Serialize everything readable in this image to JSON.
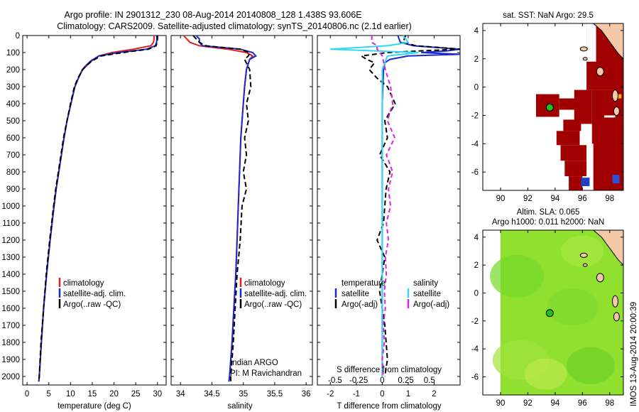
{
  "header": {
    "title_line1": "Argo profile: IN 2901312_230 08-Aug-2014 20140808_128 1.438S 93.606E",
    "title_line2": "Climatology: CARS2009. Satellite-adjusted climatology: synTS_20140806.nc (2.1d earlier)"
  },
  "colors": {
    "climatology": "#e02020",
    "satellite": "#1a28d0",
    "argo": "#000000",
    "salinity_satellite": "#30d8f0",
    "salinity_argo": "#e020e0",
    "sst_red": "#a00000",
    "land": "#f5c8a8",
    "sla_green": "#90e030",
    "marker": "#20c020"
  },
  "chart_data": [
    {
      "id": "temperature",
      "type": "line",
      "xlabel": "temperature (deg C)",
      "ylabel": "",
      "xlim": [
        -1,
        32
      ],
      "ylim": [
        2050,
        0
      ],
      "xticks": [
        0,
        5,
        10,
        15,
        20,
        25,
        30
      ],
      "yticks": [
        0,
        100,
        200,
        300,
        400,
        500,
        600,
        700,
        800,
        900,
        1000,
        1100,
        1200,
        1300,
        1400,
        1500,
        1600,
        1700,
        1800,
        1900,
        2000
      ],
      "legend": [
        "climatology",
        "satellite-adj. clim.",
        "Argo(..raw -QC)"
      ],
      "series": [
        {
          "name": "climatology",
          "depth": [
            0,
            20,
            40,
            60,
            80,
            100,
            120,
            150,
            180,
            200,
            250,
            300,
            400,
            500,
            600,
            700,
            800,
            900,
            1000,
            1200,
            1400,
            1600,
            1800,
            2000,
            2030
          ],
          "values": [
            29.2,
            29.2,
            29.1,
            28.5,
            24.5,
            19.5,
            16.5,
            14.8,
            13.6,
            12.8,
            11.8,
            11.0,
            10.1,
            9.2,
            8.5,
            7.9,
            7.3,
            6.7,
            6.2,
            5.3,
            4.5,
            3.8,
            3.3,
            2.8,
            2.7
          ]
        },
        {
          "name": "satellite-adj. clim.",
          "depth": [
            0,
            20,
            40,
            60,
            80,
            100,
            120,
            150,
            180,
            200,
            250,
            300,
            400,
            500,
            600,
            700,
            800,
            900,
            1000,
            1200,
            1400,
            1600,
            1800,
            2000,
            2030
          ],
          "values": [
            29.8,
            29.9,
            29.8,
            29.5,
            27.5,
            21.0,
            16.5,
            14.6,
            13.4,
            12.7,
            11.8,
            11.0,
            10.1,
            9.2,
            8.5,
            7.9,
            7.3,
            6.7,
            6.2,
            5.3,
            4.5,
            3.8,
            3.3,
            2.8,
            2.7
          ]
        },
        {
          "name": "Argo(..raw -QC)",
          "depth": [
            0,
            20,
            40,
            60,
            80,
            100,
            120,
            150,
            180,
            200,
            250,
            300,
            400,
            500,
            600,
            700,
            800,
            900,
            1000,
            1200,
            1400,
            1600,
            1800,
            2000,
            2030
          ],
          "values": [
            30.0,
            30.0,
            29.9,
            29.7,
            28.0,
            22.0,
            17.0,
            14.9,
            13.5,
            12.8,
            11.7,
            10.9,
            10.0,
            9.2,
            8.4,
            7.8,
            7.2,
            6.6,
            6.1,
            5.2,
            4.4,
            3.8,
            3.2,
            2.8,
            2.7
          ]
        }
      ]
    },
    {
      "id": "salinity",
      "type": "line",
      "xlabel": "salinity",
      "xlim": [
        33.85,
        36.1
      ],
      "ylim": [
        2050,
        0
      ],
      "xticks": [
        34,
        34.5,
        35,
        35.5,
        36
      ],
      "legend": [
        "climatology",
        "satellite-adj. clim.",
        "Argo(..raw -QC)"
      ],
      "annotation": [
        "Indian ARGO",
        "PI: M Ravichandran"
      ],
      "series": [
        {
          "name": "climatology",
          "depth": [
            0,
            20,
            40,
            60,
            80,
            100,
            120,
            140,
            200,
            300,
            400,
            500,
            600,
            700,
            800,
            900,
            1000,
            1200,
            1400,
            1600,
            1800,
            2000,
            2030
          ],
          "values": [
            34.05,
            34.1,
            34.15,
            34.3,
            34.75,
            35.05,
            35.15,
            35.1,
            35.05,
            35.02,
            35.0,
            34.98,
            34.96,
            34.95,
            34.94,
            34.93,
            34.92,
            34.9,
            34.88,
            34.85,
            34.82,
            34.78,
            34.77
          ]
        },
        {
          "name": "satellite-adj. clim.",
          "depth": [
            0,
            20,
            40,
            60,
            80,
            100,
            120,
            140,
            200,
            300,
            400,
            500,
            600,
            700,
            800,
            900,
            1000,
            1200,
            1400,
            1600,
            1800,
            2000,
            2030
          ],
          "values": [
            34.25,
            34.3,
            34.3,
            34.35,
            34.95,
            35.15,
            35.2,
            35.1,
            35.05,
            35.02,
            35.0,
            34.98,
            34.96,
            34.95,
            34.94,
            34.93,
            34.92,
            34.9,
            34.88,
            34.85,
            34.82,
            34.78,
            34.77
          ]
        },
        {
          "name": "Argo(..raw -QC)",
          "depth": [
            0,
            20,
            40,
            60,
            80,
            100,
            120,
            140,
            200,
            300,
            400,
            500,
            600,
            700,
            800,
            900,
            1000,
            1200,
            1400,
            1600,
            1800,
            2000,
            2030
          ],
          "values": [
            34.2,
            34.25,
            34.3,
            34.4,
            34.95,
            35.1,
            35.08,
            35.02,
            35.1,
            35.12,
            35.05,
            35.08,
            35.02,
            35.05,
            35.0,
            35.05,
            34.98,
            34.95,
            34.9,
            34.87,
            34.84,
            34.8,
            34.8
          ]
        }
      ]
    },
    {
      "id": "differences",
      "type": "line",
      "xlabel": "T difference from climatology",
      "xlabel_top": "S difference from climatology",
      "xlim": [
        -2.5,
        3.0
      ],
      "ylim": [
        2050,
        0
      ],
      "xticks": [
        -2,
        -1,
        0,
        1,
        2
      ],
      "sticks_top": [
        -0.5,
        -0.25,
        0,
        0.25,
        0.5
      ],
      "legend_temperature_title": "temperature",
      "legend_salinity_title": "salinity",
      "legend": [
        "satellite",
        "Argo(-adj)",
        "satellite",
        "Argo(-adj)"
      ],
      "series": [
        {
          "name": "temperature satellite",
          "depth": [
            0,
            40,
            60,
            80,
            90,
            100,
            110,
            120,
            140,
            160,
            200,
            400,
            800,
            1200,
            1600,
            2000
          ],
          "values": [
            0.6,
            0.7,
            1.2,
            3.0,
            2.5,
            1.5,
            3.0,
            1.0,
            0.3,
            0.1,
            0.05,
            0.0,
            0.0,
            0.0,
            0.0,
            0.0
          ]
        },
        {
          "name": "temperature Argo(-adj)",
          "depth": [
            0,
            40,
            60,
            80,
            90,
            100,
            120,
            140,
            160,
            200,
            250,
            300,
            400,
            500,
            600,
            700,
            800,
            900,
            1000,
            1100,
            1200,
            1300,
            1500,
            1700,
            1900,
            2000
          ],
          "values": [
            0.9,
            0.8,
            1.3,
            3.2,
            1.5,
            0.2,
            -0.8,
            -0.6,
            -0.3,
            -0.5,
            -0.2,
            0.2,
            0.5,
            0.1,
            0.2,
            -0.1,
            0.3,
            0.15,
            0.1,
            0.05,
            -0.2,
            0.1,
            -0.1,
            0.1,
            0.2,
            0.1
          ]
        },
        {
          "name": "salinity satellite",
          "depth": [
            0,
            40,
            60,
            80,
            100,
            120,
            200,
            400,
            800,
            1200,
            1600,
            2000
          ],
          "values": [
            0.2,
            0.25,
            0.05,
            -0.5,
            0.35,
            0.05,
            0.0,
            0.0,
            0.0,
            0.0,
            0.0,
            0.0
          ]
        },
        {
          "name": "salinity Argo(-adj)",
          "depth": [
            0,
            40,
            60,
            80,
            100,
            120,
            200,
            300,
            400,
            500,
            600,
            700,
            800,
            900,
            1000,
            1100,
            1200,
            1300,
            1400,
            1500,
            1600,
            1700,
            1800,
            1900,
            2000
          ],
          "values": [
            -0.1,
            -0.1,
            -0.05,
            -0.05,
            -0.02,
            0.0,
            0.03,
            0.08,
            0.1,
            0.05,
            0.12,
            0.04,
            0.1,
            0.06,
            0.08,
            0.04,
            0.06,
            0.03,
            0.04,
            0.02,
            0.03,
            0.01,
            0.02,
            0.0,
            0.01
          ]
        }
      ]
    },
    {
      "id": "sst_map",
      "type": "heatmap",
      "title": "sat. SST: NaN Argo: 29.5",
      "xlim": [
        88.7,
        99.0
      ],
      "ylim": [
        -7.3,
        4.5
      ],
      "xticks": [
        90,
        92,
        94,
        96,
        98
      ],
      "yticks": [
        4,
        2,
        0,
        -2,
        -4,
        -6
      ],
      "argo_position": [
        93.606,
        -1.438
      ]
    },
    {
      "id": "sla_map",
      "type": "heatmap",
      "title_line1": "Altim. SLA: 0.065",
      "title_line2": "Argo h1000: 0.011 h2000: NaN",
      "xlim": [
        88.7,
        99.0
      ],
      "ylim": [
        -7.3,
        4.5
      ],
      "xticks": [
        90,
        92,
        94,
        96,
        98
      ],
      "yticks": [
        4,
        2,
        0,
        -2,
        -4,
        -6
      ],
      "argo_position": [
        93.606,
        -1.438
      ]
    }
  ],
  "footer_stamp": "IMOS 13-Aug-2014 20:00:39"
}
